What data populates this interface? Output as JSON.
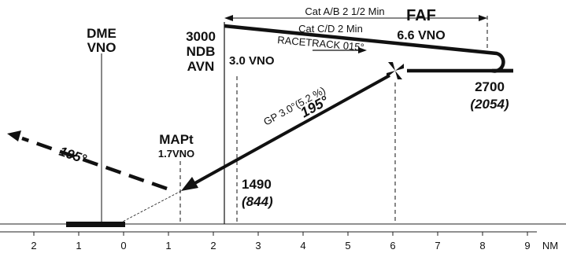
{
  "axis": {
    "ticks": [
      "2",
      "1",
      "0",
      "1",
      "2",
      "3",
      "4",
      "5",
      "6",
      "7",
      "8",
      "9"
    ],
    "unit": "NM"
  },
  "dme": {
    "line1": "DME",
    "line2": "VNO"
  },
  "ndb": {
    "alt": "3000",
    "name": "NDB",
    "id": "AVN",
    "dist": "3.0 VNO"
  },
  "racetrack": {
    "cat_ab": "Cat A/B 2 1/2 Min",
    "cat_cd": "Cat C/D 2 Min",
    "label": "RACETRACK 015°"
  },
  "faf": {
    "label": "FAF",
    "dist": "6.6 VNO",
    "alt": "2700",
    "height": "(2054)"
  },
  "glidepath": {
    "label": "GP 3.0°(5.2 %)",
    "course": "195°"
  },
  "mapt": {
    "label": "MAPt",
    "dist": "1.7VNO"
  },
  "missed": {
    "course": "195°"
  },
  "minimum": {
    "alt": "1490",
    "height": "(844)"
  }
}
